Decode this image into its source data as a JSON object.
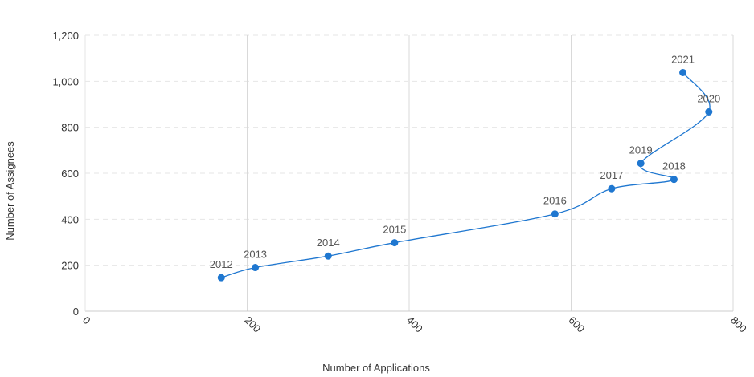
{
  "chart_data": {
    "type": "scatter",
    "xlabel": "Number of Applications",
    "ylabel": "Number of Assignees",
    "xlim": [
      0,
      800
    ],
    "ylim": [
      0,
      1200
    ],
    "x_ticks": [
      0,
      200,
      400,
      600,
      800
    ],
    "y_ticks": [
      0,
      200,
      400,
      600,
      800,
      1000,
      1200
    ],
    "x_tick_labels": [
      "0",
      "200",
      "400",
      "600",
      "800"
    ],
    "y_tick_labels": [
      "0",
      "200",
      "400",
      "600",
      "800",
      "1,000",
      "1,200"
    ],
    "grid": {
      "x": "solid",
      "y": "dashed"
    },
    "connected": true,
    "series": [
      {
        "points": [
          {
            "label": "2012",
            "x": 168,
            "y": 146
          },
          {
            "label": "2013",
            "x": 210,
            "y": 190
          },
          {
            "label": "2014",
            "x": 300,
            "y": 240
          },
          {
            "label": "2015",
            "x": 382,
            "y": 298
          },
          {
            "label": "2016",
            "x": 580,
            "y": 423
          },
          {
            "label": "2017",
            "x": 650,
            "y": 533
          },
          {
            "label": "2018",
            "x": 727,
            "y": 573
          },
          {
            "label": "2019",
            "x": 686,
            "y": 643
          },
          {
            "label": "2020",
            "x": 770,
            "y": 867
          },
          {
            "label": "2021",
            "x": 738,
            "y": 1038
          }
        ]
      }
    ],
    "colors": {
      "series": "#1f77d0",
      "grid": "#d9d9d9",
      "axis": "#cccccc"
    }
  }
}
